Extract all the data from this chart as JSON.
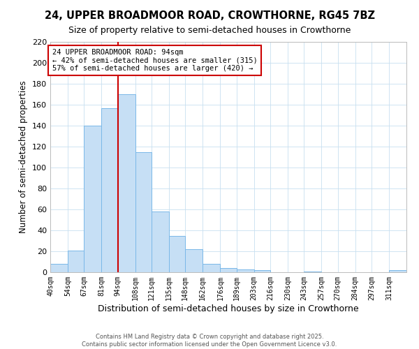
{
  "title": "24, UPPER BROADMOOR ROAD, CROWTHORNE, RG45 7BZ",
  "subtitle": "Size of property relative to semi-detached houses in Crowthorne",
  "xlabel": "Distribution of semi-detached houses by size in Crowthorne",
  "ylabel": "Number of semi-detached properties",
  "bar_labels": [
    "40sqm",
    "54sqm",
    "67sqm",
    "81sqm",
    "94sqm",
    "108sqm",
    "121sqm",
    "135sqm",
    "148sqm",
    "162sqm",
    "176sqm",
    "189sqm",
    "203sqm",
    "216sqm",
    "230sqm",
    "243sqm",
    "257sqm",
    "270sqm",
    "284sqm",
    "297sqm",
    "311sqm"
  ],
  "bar_values": [
    8,
    21,
    140,
    157,
    170,
    115,
    58,
    35,
    22,
    8,
    4,
    3,
    2,
    0,
    0,
    1,
    0,
    0,
    0,
    0,
    2
  ],
  "bar_edges": [
    40,
    54,
    67,
    81,
    94,
    108,
    121,
    135,
    148,
    162,
    176,
    189,
    203,
    216,
    230,
    243,
    257,
    270,
    284,
    297,
    311,
    325
  ],
  "bar_color": "#c6dff5",
  "bar_edge_color": "#7ab8e8",
  "property_line_x": 94,
  "property_line_color": "#cc0000",
  "annotation_title": "24 UPPER BROADMOOR ROAD: 94sqm",
  "annotation_line1": "← 42% of semi-detached houses are smaller (315)",
  "annotation_line2": "57% of semi-detached houses are larger (420) →",
  "annotation_box_color": "#ffffff",
  "annotation_box_edge": "#cc0000",
  "ylim": [
    0,
    220
  ],
  "yticks": [
    0,
    20,
    40,
    60,
    80,
    100,
    120,
    140,
    160,
    180,
    200,
    220
  ],
  "footer1": "Contains HM Land Registry data © Crown copyright and database right 2025.",
  "footer2": "Contains public sector information licensed under the Open Government Licence v3.0.",
  "background_color": "#ffffff",
  "grid_color": "#c8dff0"
}
